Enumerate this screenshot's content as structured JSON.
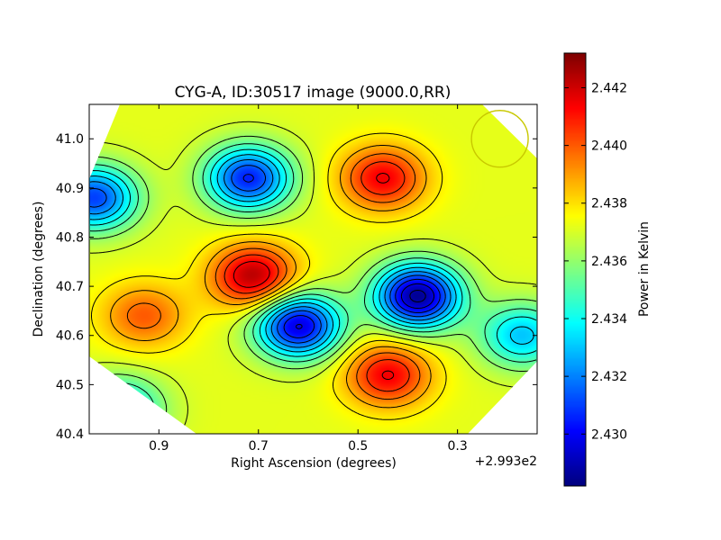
{
  "chart_data": {
    "type": "heatmap",
    "title": "CYG-A, ID:30517 image (9000.0,RR)",
    "xlabel": "Right Ascension (degrees)",
    "ylabel": "Declination (degrees)",
    "x_offset_label": "+2.993e2",
    "x_ticks": [
      "0.9",
      "0.7",
      "0.5",
      "0.3"
    ],
    "x_tick_values": [
      0.9,
      0.7,
      0.5,
      0.3
    ],
    "y_ticks": [
      "40.4",
      "40.5",
      "40.6",
      "40.7",
      "40.8",
      "40.9",
      "41.0"
    ],
    "y_tick_values": [
      40.4,
      40.5,
      40.6,
      40.7,
      40.8,
      40.9,
      41.0
    ],
    "xlim": [
      1.04,
      0.14
    ],
    "ylim": [
      40.4,
      41.07
    ],
    "x_inverted": true,
    "colorbar": {
      "label": "Power in Kelvin",
      "ticks": [
        "2.430",
        "2.432",
        "2.434",
        "2.436",
        "2.438",
        "2.440",
        "2.442"
      ],
      "tick_values": [
        2.43,
        2.432,
        2.434,
        2.436,
        2.438,
        2.44,
        2.442
      ],
      "range": [
        2.4282,
        2.4432
      ],
      "colormap": "jet"
    },
    "features": [
      {
        "kind": "max",
        "x": 0.71,
        "y": 40.72,
        "value": 2.4425
      },
      {
        "kind": "max",
        "x": 0.45,
        "y": 40.92,
        "value": 2.4415
      },
      {
        "kind": "max",
        "x": 0.44,
        "y": 40.52,
        "value": 2.4415
      },
      {
        "kind": "max",
        "x": 0.93,
        "y": 40.64,
        "value": 2.44
      },
      {
        "kind": "min",
        "x": 0.38,
        "y": 40.68,
        "value": 2.4285
      },
      {
        "kind": "min",
        "x": 0.62,
        "y": 40.62,
        "value": 2.4295
      },
      {
        "kind": "min",
        "x": 0.72,
        "y": 40.92,
        "value": 2.4305
      },
      {
        "kind": "min",
        "x": 1.03,
        "y": 40.88,
        "value": 2.431
      },
      {
        "kind": "min",
        "x": 0.17,
        "y": 40.6,
        "value": 2.433
      },
      {
        "kind": "min",
        "x": 0.98,
        "y": 40.45,
        "value": 2.433
      }
    ],
    "beam_marker": {
      "x": 0.215,
      "y": 41.0,
      "radius_deg": 0.057,
      "color": "#c8c800"
    },
    "contours": "black lines"
  }
}
